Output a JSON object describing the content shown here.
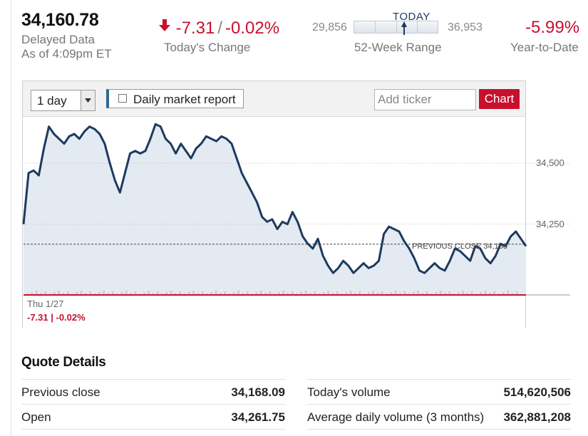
{
  "quote": {
    "price": "34,160.78",
    "delayed_label": "Delayed Data",
    "as_of": "As of 4:09pm ET",
    "change": "-7.31",
    "change_sep": "/",
    "change_percent": "-0.02%",
    "change_label": "Today's Change",
    "range_low": "29,856",
    "range_high": "36,953",
    "range_today_label": "TODAY",
    "range_label": "52-Week Range",
    "range_position": 0.6,
    "ytd_value": "-5.99%",
    "ytd_label": "Year-to-Date",
    "negative_color": "#c8102e"
  },
  "toolbar": {
    "period_value": "1 day",
    "report_label": "Daily market report",
    "report_checked": false,
    "ticker_placeholder": "Add ticker",
    "chart_button_label": "Chart"
  },
  "chart_footer": {
    "date_label": "Thu 1/27",
    "change_text": "-7.31 | -0.02%"
  },
  "chart_data": {
    "type": "line",
    "title": "",
    "xlabel": "",
    "ylabel": "",
    "xlim": [
      0,
      1
    ],
    "ylim": [
      33960,
      34690
    ],
    "y_ticks": [
      34500,
      34250
    ],
    "y_tick_labels": [
      "34,500",
      "34,250"
    ],
    "previous_close": 34168,
    "previous_close_label": "PREVIOUS CLOSE 34,168",
    "line_color": "#1d3a5f",
    "fill_color": "#e4eaf2",
    "baseline_color": "#c8102e",
    "grid": true,
    "series": [
      {
        "values": [
          34250,
          34460,
          34470,
          34450,
          34560,
          34650,
          34620,
          34600,
          34580,
          34610,
          34620,
          34600,
          34630,
          34650,
          34640,
          34620,
          34580,
          34500,
          34430,
          34380,
          34460,
          34540,
          34550,
          34540,
          34550,
          34600,
          34660,
          34650,
          34600,
          34580,
          34540,
          34580,
          34550,
          34520,
          34560,
          34580,
          34610,
          34600,
          34590,
          34610,
          34600,
          34580,
          34520,
          34460,
          34420,
          34380,
          34340,
          34280,
          34260,
          34270,
          34230,
          34260,
          34250,
          34300,
          34260,
          34200,
          34170,
          34150,
          34190,
          34120,
          34080,
          34050,
          34070,
          34100,
          34080,
          34050,
          34070,
          34090,
          34070,
          34080,
          34100,
          34210,
          34240,
          34230,
          34220,
          34180,
          34150,
          34110,
          34060,
          34050,
          34070,
          34090,
          34070,
          34060,
          34100,
          34150,
          34140,
          34120,
          34100,
          34160,
          34150,
          34110,
          34090,
          34120,
          34170,
          34160,
          34200,
          34220,
          34190,
          34160
        ]
      }
    ]
  },
  "details": {
    "title": "Quote Details",
    "left": [
      {
        "label": "Previous close",
        "value": "34,168.09"
      },
      {
        "label": "Open",
        "value": "34,261.75"
      }
    ],
    "right": [
      {
        "label": "Today's volume",
        "value": "514,620,506"
      },
      {
        "label": "Average daily volume (3 months)",
        "value": "362,881,208"
      }
    ]
  }
}
